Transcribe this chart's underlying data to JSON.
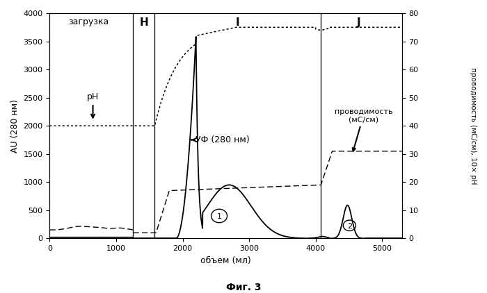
{
  "title": "Фиг. 3",
  "xlabel": "объем (мл)",
  "ylabel_left": "AU (280 нм)",
  "ylabel_right": "проводимость (мС/см), 10× pH",
  "xlim": [
    0,
    5300
  ],
  "ylim_left": [
    0,
    4000
  ],
  "ylim_right": [
    0,
    80
  ],
  "xticks": [
    0,
    1000,
    2000,
    3000,
    4000,
    5000
  ],
  "yticks_left": [
    0,
    500,
    1000,
    1500,
    2000,
    2500,
    3000,
    3500,
    4000
  ],
  "yticks_right": [
    0,
    10,
    20,
    30,
    40,
    50,
    60,
    70,
    80
  ],
  "vline_1": 1250,
  "vline_2": 4080,
  "bg_color": "#ffffff"
}
